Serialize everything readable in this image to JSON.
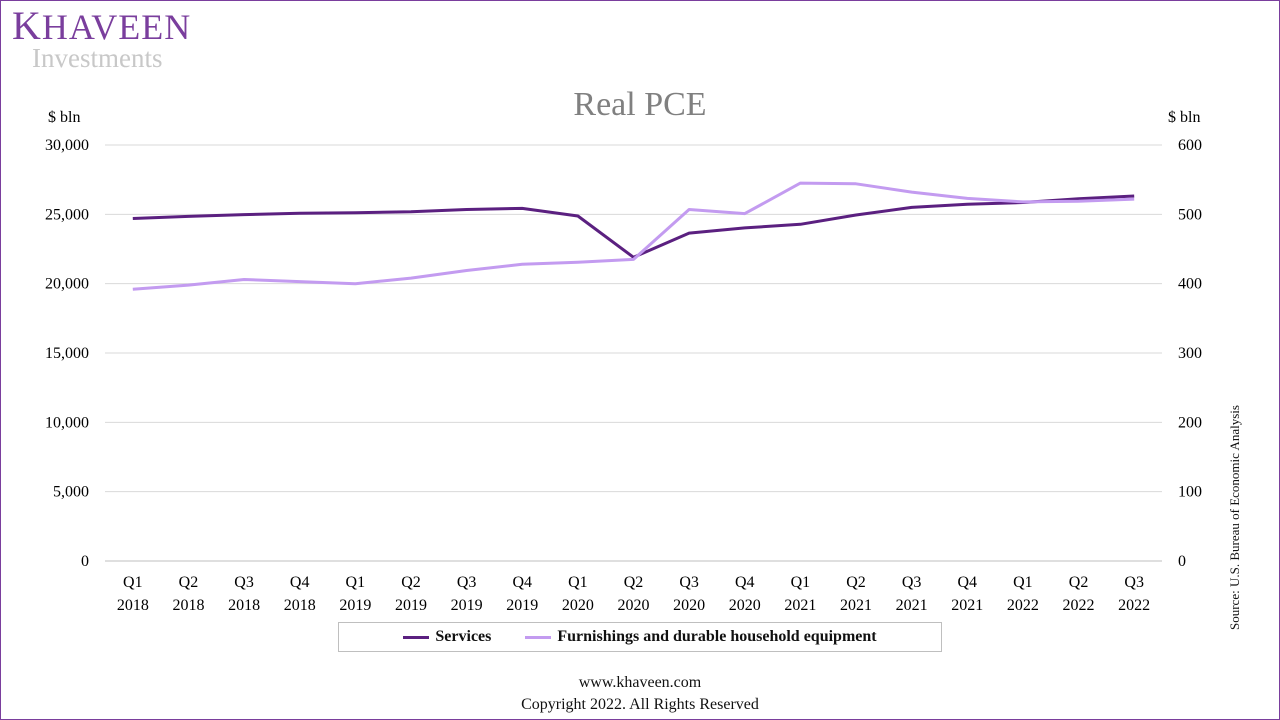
{
  "brand": {
    "name_initial": "K",
    "name_rest": "HAVEEN",
    "subtitle": "Investments"
  },
  "footer": {
    "url": "www.khaveen.com",
    "copyright": "Copyright 2022. All Rights Reserved"
  },
  "source_note": "Source:  U.S. Bureau of Economic Analysis",
  "colors": {
    "services": "#5b2080",
    "furnishings": "#c39bf0",
    "frame": "#7a3e9d"
  },
  "chart_data": {
    "type": "line",
    "title": "Real PCE",
    "ylabel_left": "$ bln",
    "ylabel_right": "$ bln",
    "ylim_left": [
      0,
      30000
    ],
    "ylim_right": [
      0,
      600
    ],
    "yticks_left": [
      "0",
      "5,000",
      "10,000",
      "15,000",
      "20,000",
      "25,000",
      "30,000"
    ],
    "yticks_right": [
      "0",
      "100",
      "200",
      "300",
      "400",
      "500",
      "600"
    ],
    "grid": true,
    "legend_position": "bottom",
    "categories": [
      [
        "Q1",
        "2018"
      ],
      [
        "Q2",
        "2018"
      ],
      [
        "Q3",
        "2018"
      ],
      [
        "Q4",
        "2018"
      ],
      [
        "Q1",
        "2019"
      ],
      [
        "Q2",
        "2019"
      ],
      [
        "Q3",
        "2019"
      ],
      [
        "Q4",
        "2019"
      ],
      [
        "Q1",
        "2020"
      ],
      [
        "Q2",
        "2020"
      ],
      [
        "Q3",
        "2020"
      ],
      [
        "Q4",
        "2020"
      ],
      [
        "Q1",
        "2021"
      ],
      [
        "Q2",
        "2021"
      ],
      [
        "Q3",
        "2021"
      ],
      [
        "Q4",
        "2021"
      ],
      [
        "Q1",
        "2022"
      ],
      [
        "Q2",
        "2022"
      ],
      [
        "Q3",
        "2022"
      ]
    ],
    "series": [
      {
        "name": "Services",
        "axis": "left",
        "values": [
          24700,
          24850,
          24980,
          25080,
          25120,
          25180,
          25350,
          25430,
          24880,
          21900,
          23650,
          24020,
          24280,
          24950,
          25500,
          25720,
          25850,
          26120,
          26320
        ]
      },
      {
        "name": "Furnishings and durable household equipment",
        "axis": "right",
        "values": [
          392,
          398,
          406,
          403,
          400,
          408,
          419,
          428,
          431,
          435,
          507,
          501,
          545,
          544,
          532,
          523,
          518,
          519,
          522
        ]
      }
    ]
  }
}
